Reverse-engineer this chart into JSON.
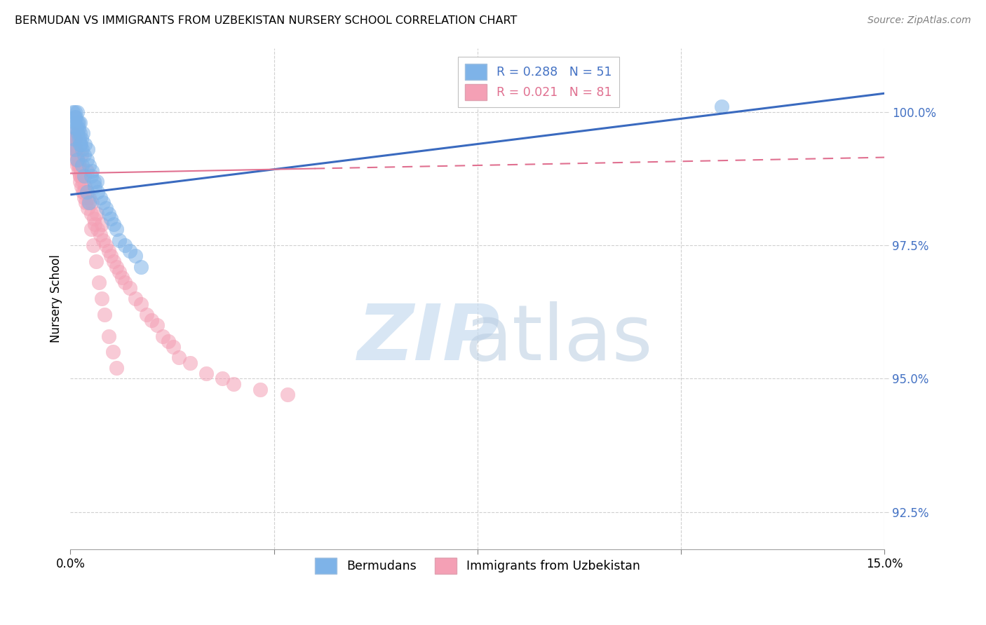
{
  "title": "BERMUDAN VS IMMIGRANTS FROM UZBEKISTAN NURSERY SCHOOL CORRELATION CHART",
  "source": "Source: ZipAtlas.com",
  "ylabel": "Nursery School",
  "yticks": [
    92.5,
    95.0,
    97.5,
    100.0
  ],
  "ytick_labels": [
    "92.5%",
    "95.0%",
    "97.5%",
    "100.0%"
  ],
  "xlim": [
    0.0,
    15.0
  ],
  "ylim": [
    91.8,
    101.2
  ],
  "blue_color": "#7eb3e8",
  "pink_color": "#f4a0b5",
  "blue_line_color": "#3a6abf",
  "pink_line_color": "#e07090",
  "legend_label_blue": "R = 0.288   N = 51",
  "legend_label_pink": "R = 0.021   N = 81",
  "legend_text_blue": "#4472c4",
  "legend_text_pink": "#e07090",
  "watermark_zip": "ZIP",
  "watermark_atlas": "atlas",
  "berm_x": [
    0.05,
    0.07,
    0.08,
    0.09,
    0.1,
    0.11,
    0.12,
    0.13,
    0.14,
    0.15,
    0.16,
    0.17,
    0.18,
    0.19,
    0.2,
    0.22,
    0.23,
    0.25,
    0.27,
    0.3,
    0.32,
    0.35,
    0.38,
    0.4,
    0.43,
    0.45,
    0.48,
    0.5,
    0.55,
    0.6,
    0.65,
    0.7,
    0.75,
    0.8,
    0.85,
    0.9,
    1.0,
    1.1,
    1.2,
    1.3,
    0.06,
    0.08,
    0.1,
    0.12,
    0.15,
    0.18,
    0.22,
    0.25,
    0.3,
    0.35,
    12.0
  ],
  "berm_y": [
    100.0,
    99.9,
    100.0,
    99.8,
    99.9,
    99.7,
    100.0,
    99.8,
    99.6,
    99.7,
    99.5,
    99.8,
    99.6,
    99.4,
    99.5,
    99.3,
    99.6,
    99.2,
    99.4,
    99.1,
    99.3,
    99.0,
    98.8,
    98.9,
    98.7,
    98.6,
    98.7,
    98.5,
    98.4,
    98.3,
    98.2,
    98.1,
    98.0,
    97.9,
    97.8,
    97.6,
    97.5,
    97.4,
    97.3,
    97.1,
    99.5,
    99.3,
    99.7,
    99.1,
    99.8,
    99.4,
    99.0,
    98.8,
    98.5,
    98.3,
    100.1
  ],
  "uzb_x": [
    0.03,
    0.05,
    0.06,
    0.07,
    0.08,
    0.09,
    0.1,
    0.11,
    0.12,
    0.13,
    0.14,
    0.15,
    0.16,
    0.17,
    0.18,
    0.19,
    0.2,
    0.22,
    0.23,
    0.25,
    0.27,
    0.28,
    0.3,
    0.32,
    0.35,
    0.38,
    0.4,
    0.43,
    0.45,
    0.48,
    0.5,
    0.55,
    0.58,
    0.6,
    0.65,
    0.7,
    0.75,
    0.8,
    0.85,
    0.9,
    0.95,
    1.0,
    1.1,
    1.2,
    1.3,
    1.4,
    1.5,
    1.6,
    1.7,
    1.8,
    1.9,
    2.0,
    2.2,
    2.5,
    2.8,
    3.0,
    3.5,
    4.0,
    0.04,
    0.06,
    0.08,
    0.1,
    0.12,
    0.15,
    0.18,
    0.2,
    0.23,
    0.26,
    0.3,
    0.33,
    0.38,
    0.42,
    0.47,
    0.52,
    0.58,
    0.63,
    0.7,
    0.78,
    0.85
  ],
  "uzb_y": [
    99.5,
    99.6,
    99.4,
    99.3,
    99.5,
    99.4,
    99.2,
    99.3,
    99.1,
    99.0,
    99.2,
    98.9,
    99.0,
    98.8,
    98.7,
    98.9,
    98.6,
    98.8,
    98.5,
    98.4,
    98.6,
    98.3,
    98.5,
    98.2,
    98.4,
    98.1,
    98.3,
    98.0,
    97.9,
    98.1,
    97.8,
    97.7,
    97.9,
    97.6,
    97.5,
    97.4,
    97.3,
    97.2,
    97.1,
    97.0,
    96.9,
    96.8,
    96.7,
    96.5,
    96.4,
    96.2,
    96.1,
    96.0,
    95.8,
    95.7,
    95.6,
    95.4,
    95.3,
    95.1,
    95.0,
    94.9,
    94.8,
    94.7,
    99.4,
    99.3,
    99.5,
    99.1,
    99.6,
    99.0,
    98.8,
    99.2,
    98.7,
    98.5,
    98.9,
    98.3,
    97.8,
    97.5,
    97.2,
    96.8,
    96.5,
    96.2,
    95.8,
    95.5,
    95.2
  ]
}
